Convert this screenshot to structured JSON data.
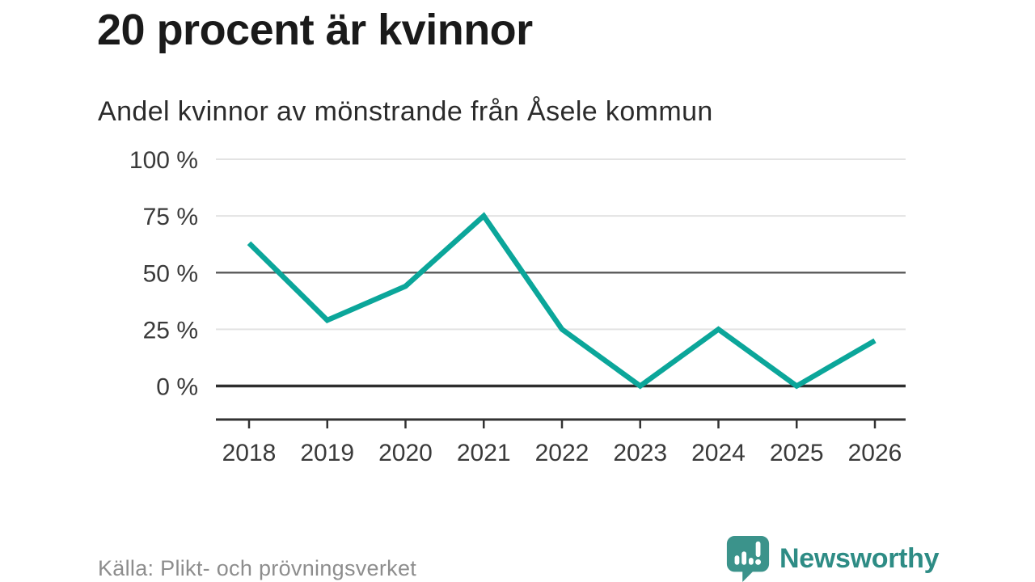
{
  "header": {
    "title": "20 procent är kvinnor",
    "subtitle": "Andel kvinnor av mönstrande från Åsele kommun"
  },
  "chart_data": {
    "type": "line",
    "title": "20 procent är kvinnor",
    "subtitle": "Andel kvinnor av mönstrande från Åsele kommun",
    "x": [
      "2018",
      "2019",
      "2020",
      "2021",
      "2022",
      "2023",
      "2024",
      "2025",
      "2026"
    ],
    "values": [
      63,
      29,
      44,
      75,
      25,
      0,
      25,
      0,
      20
    ],
    "unit": "%",
    "ylim": [
      0,
      100
    ],
    "y_ticks": [
      {
        "value": 0,
        "label": "0 %"
      },
      {
        "value": 25,
        "label": "25 %"
      },
      {
        "value": 50,
        "label": "50 %"
      },
      {
        "value": 75,
        "label": "75 %"
      },
      {
        "value": 100,
        "label": "100 %"
      }
    ],
    "grid": true,
    "legend": "none",
    "emphasized_gridlines": [
      0,
      50
    ]
  },
  "footer": {
    "source": "Källa: Plikt- och prövningsverket",
    "brand_name": "Newsworthy",
    "brand_icon": "bar-chart-speech-bubble-icon"
  },
  "colors": {
    "line": "#0ba69a",
    "grid_light": "#e3e3e3",
    "grid_mid": "#5f5f5f",
    "baseline_dark": "#2e2e2e",
    "axis": "#333333",
    "tick_label": "#3a3a3a",
    "title_text": "#1a1a1a",
    "source_text": "#8d8d8d",
    "brand_teal": "#2e8c85",
    "brand_icon_teal": "#3b938b"
  }
}
